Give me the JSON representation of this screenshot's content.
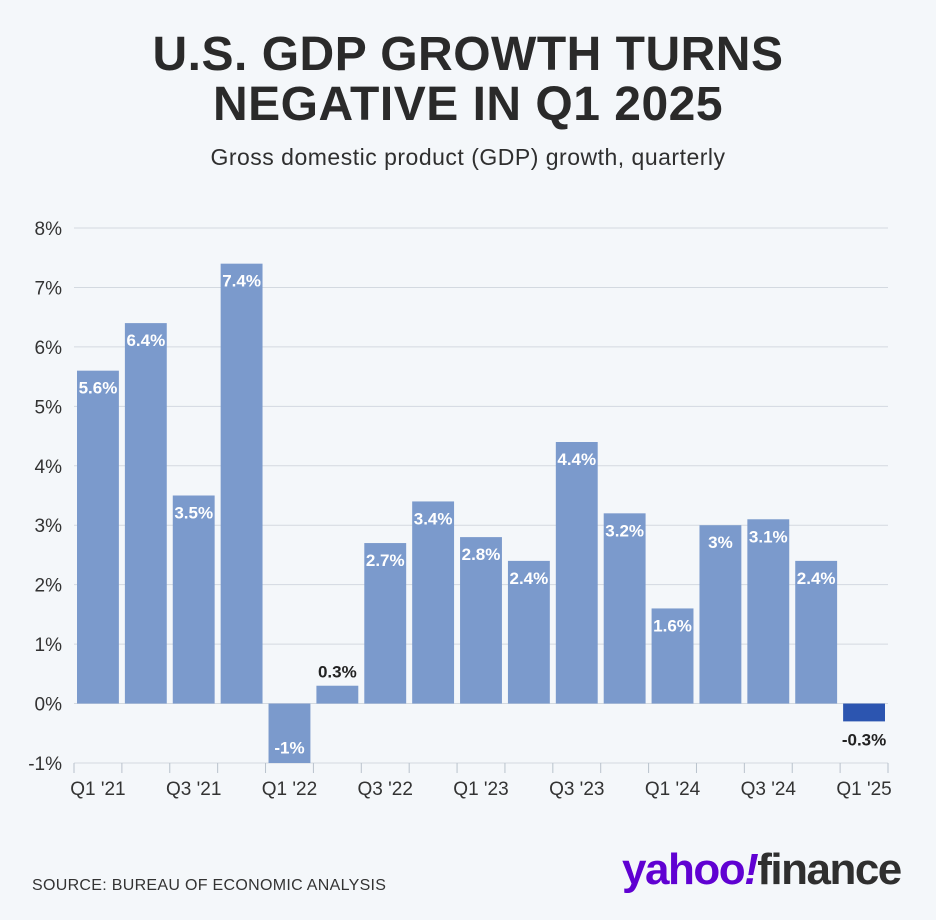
{
  "title_lines": [
    "U.S. GDP GROWTH TURNS",
    "NEGATIVE IN Q1 2025"
  ],
  "subtitle": "Gross domestic product (GDP) growth, quarterly",
  "source": "SOURCE: BUREAU OF ECONOMIC ANALYSIS",
  "logo": {
    "part1": "yahoo",
    "part2": "!",
    "part3": "finance"
  },
  "colors": {
    "bar": "#7b9acc",
    "highlight": "#2c55b0",
    "grid": "#d3d9e0",
    "text": "#333333"
  },
  "chart_data": {
    "type": "bar",
    "categories": [
      "Q1 '21",
      "Q2 '21",
      "Q3 '21",
      "Q4 '21",
      "Q1 '22",
      "Q2 '22",
      "Q3 '22",
      "Q4 '22",
      "Q1 '23",
      "Q2 '23",
      "Q3 '23",
      "Q4 '23",
      "Q1 '24",
      "Q2 '24",
      "Q3 '24",
      "Q4 '24",
      "Q1 '25"
    ],
    "values": [
      5.6,
      6.4,
      3.5,
      7.4,
      -1,
      0.3,
      2.7,
      3.4,
      2.8,
      2.4,
      4.4,
      3.2,
      1.6,
      3,
      3.1,
      2.4,
      -0.3
    ],
    "data_labels": [
      "5.6%",
      "6.4%",
      "3.5%",
      "7.4%",
      "-1%",
      "0.3%",
      "2.7%",
      "3.4%",
      "2.8%",
      "2.4%",
      "4.4%",
      "3.2%",
      "1.6%",
      "3%",
      "3.1%",
      "2.4%",
      "-0.3%"
    ],
    "x_tick_labels": [
      "Q1 '21",
      "Q3 '21",
      "Q1 '22",
      "Q3 '22",
      "Q1 '23",
      "Q3 '23",
      "Q1 '24",
      "Q3 '24",
      "Q1 '25"
    ],
    "y_ticks": [
      -1,
      0,
      1,
      2,
      3,
      4,
      5,
      6,
      7,
      8
    ],
    "y_tick_labels": [
      "-1%",
      "0%",
      "1%",
      "2%",
      "3%",
      "4%",
      "5%",
      "6%",
      "7%",
      "8%"
    ],
    "ylim": [
      -1,
      8
    ],
    "grid": true,
    "highlight_category": "Q1 '25"
  }
}
